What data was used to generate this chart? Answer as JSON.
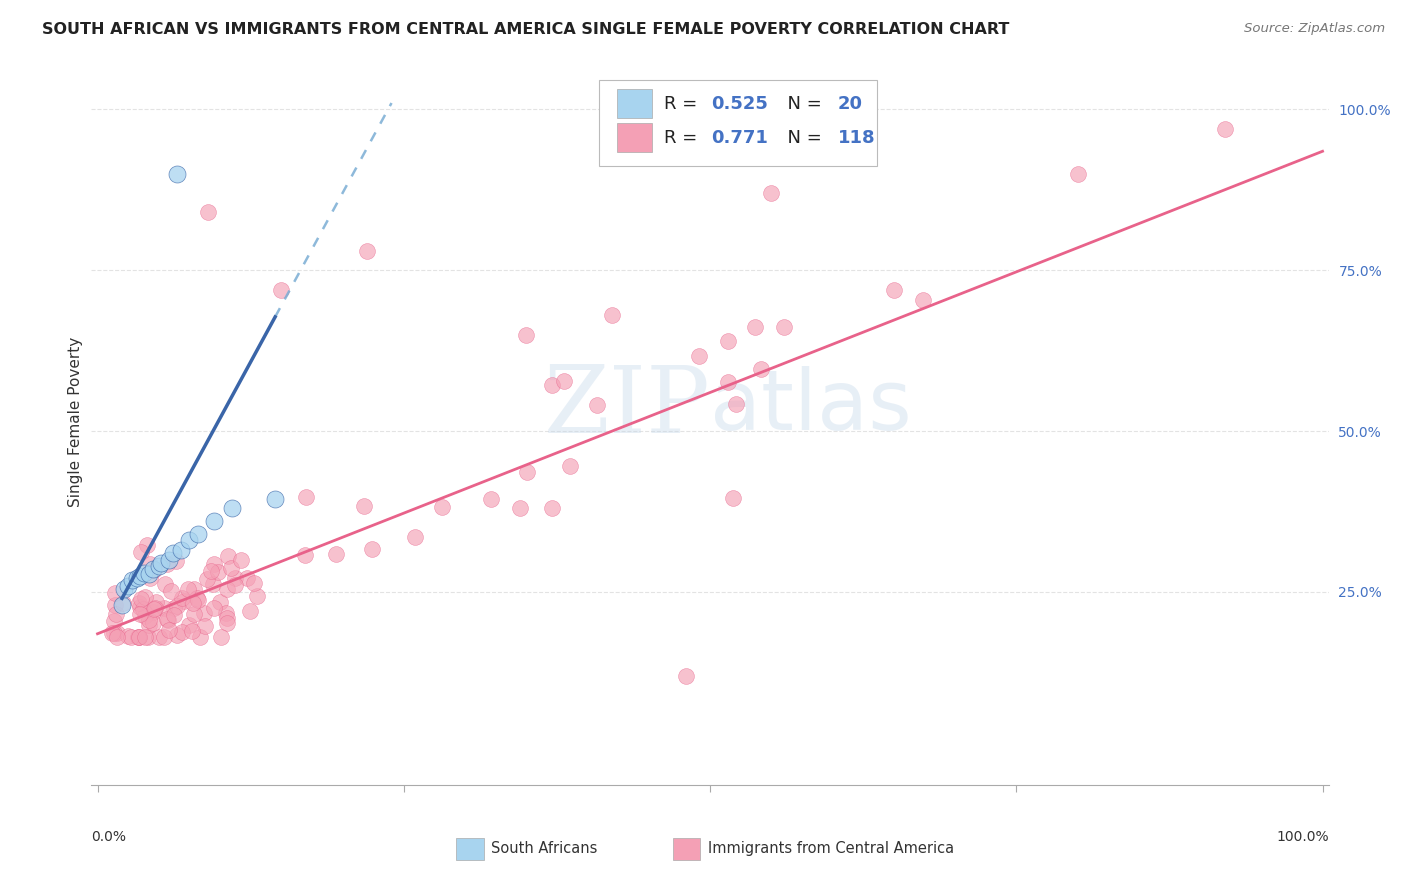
{
  "title": "SOUTH AFRICAN VS IMMIGRANTS FROM CENTRAL AMERICA SINGLE FEMALE POVERTY CORRELATION CHART",
  "source": "Source: ZipAtlas.com",
  "ylabel": "Single Female Poverty",
  "legend1_label": "South Africans",
  "legend2_label": "Immigrants from Central America",
  "R1": "0.525",
  "N1": "20",
  "R2": "0.771",
  "N2": "118",
  "color_blue": "#A8D4EF",
  "color_pink": "#F4A0B5",
  "color_blue_line": "#3A65A8",
  "color_pink_line": "#E8628A",
  "color_blue_dashed": "#7AADD4",
  "watermark_color": "#C5D8EA",
  "grid_color": "#DDDDDD",
  "tick_color": "#888888",
  "title_fontsize": 11.5,
  "source_fontsize": 9.5,
  "axis_fontsize": 9.5,
  "legend_fontsize": 13
}
